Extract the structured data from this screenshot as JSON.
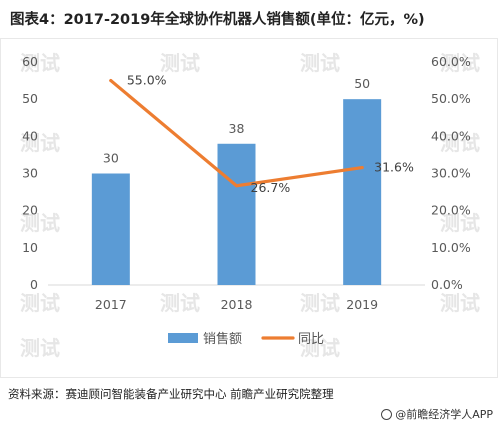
{
  "title": "图表4：2017-2019年全球协作机器人销售额(单位：亿元，%)",
  "source": "资料来源：赛迪顾问智能装备产业研究中心 前瞻产业研究院整理",
  "credit": "@前瞻经济学人APP",
  "watermark": "测试",
  "colors": {
    "bar": "#5b9bd5",
    "line": "#ed7d31",
    "axis": "#d9d9d9"
  },
  "chart_data": {
    "type": "bar",
    "categories": [
      "2017",
      "2018",
      "2019"
    ],
    "series": [
      {
        "name": "销售额",
        "type": "bar",
        "axis": "left",
        "values": [
          30,
          38,
          50
        ],
        "labels": [
          "30",
          "38",
          "50"
        ]
      },
      {
        "name": "同比",
        "type": "line",
        "axis": "right",
        "values": [
          55.0,
          26.7,
          31.6
        ],
        "labels": [
          "55.0%",
          "26.7%",
          "31.6%"
        ]
      }
    ],
    "y_left": {
      "ylim": [
        0,
        60
      ],
      "ticks": [
        "0",
        "10",
        "20",
        "30",
        "40",
        "50",
        "60"
      ]
    },
    "y_right": {
      "ylim": [
        0,
        60
      ],
      "ticks": [
        "0.0%",
        "10.0%",
        "20.0%",
        "30.0%",
        "40.0%",
        "50.0%",
        "60.0%"
      ]
    },
    "legend": {
      "position": "bottom"
    },
    "grid": false
  }
}
